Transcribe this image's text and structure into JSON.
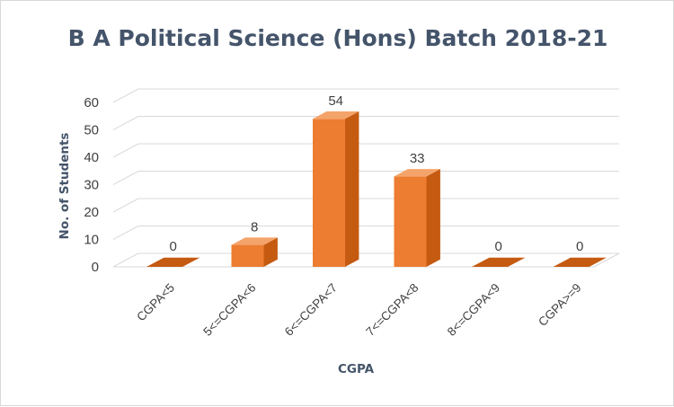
{
  "chart_data": {
    "type": "bar",
    "title": "B A Political Science (Hons)  Batch 2018-21",
    "xlabel": "CGPA",
    "ylabel": "No. of Students",
    "categories": [
      "CGPA<5",
      "5<=CGPA<6",
      "6<=CGPA<7",
      "7<=CGPA<8",
      "8<=CGPA<9",
      "CGPA>=9"
    ],
    "values": [
      0,
      8,
      54,
      33,
      0,
      0
    ],
    "ylim": [
      0,
      60
    ],
    "yticks": [
      0,
      10,
      20,
      30,
      40,
      50,
      60
    ],
    "grid": true,
    "legend": "none",
    "style": "3d-column",
    "colors": {
      "bar_front": "#ed7d31",
      "bar_side": "#c55a11",
      "bar_top": "#f4a46a",
      "grid": "#d9d9d9",
      "title": "#44546a",
      "text": "#404040"
    }
  }
}
